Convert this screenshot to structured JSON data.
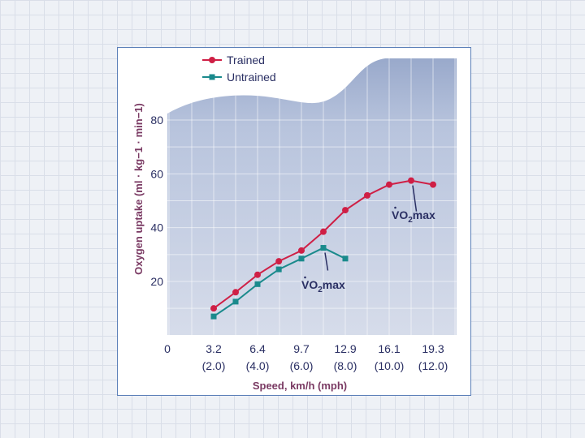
{
  "chart_data": {
    "type": "line",
    "title": "",
    "xlabel": "Speed, km/h (mph)",
    "ylabel": "Oxygen uptake (ml · kg−1 · min−1)",
    "ylim": [
      0,
      85
    ],
    "y_ticks": [
      20,
      40,
      60,
      80
    ],
    "x_ticks": [
      {
        "value": 0,
        "label": "0",
        "sublabel": ""
      },
      {
        "value": 3.2,
        "label": "3.2",
        "sublabel": "(2.0)"
      },
      {
        "value": 6.4,
        "label": "6.4",
        "sublabel": "(4.0)"
      },
      {
        "value": 9.7,
        "label": "9.7",
        "sublabel": "(6.0)"
      },
      {
        "value": 12.9,
        "label": "12.9",
        "sublabel": "(8.0)"
      },
      {
        "value": 16.1,
        "label": "16.1",
        "sublabel": "(10.0)"
      },
      {
        "value": 19.3,
        "label": "19.3",
        "sublabel": "(12.0)"
      }
    ],
    "legend_position": "top-left",
    "series": [
      {
        "name": "Trained",
        "color": "#cf1f45",
        "marker": "circle",
        "x": [
          3.2,
          4.8,
          6.4,
          8.0,
          9.7,
          11.3,
          12.9,
          14.5,
          16.1,
          17.7,
          19.3
        ],
        "y": [
          10,
          16,
          22.5,
          27.5,
          31.5,
          38.5,
          46.5,
          52,
          56,
          57.5,
          56
        ]
      },
      {
        "name": "Untrained",
        "color": "#1a8a8c",
        "marker": "square",
        "x": [
          3.2,
          4.8,
          6.4,
          8.0,
          9.7,
          11.3,
          12.9
        ],
        "y": [
          7,
          12.5,
          19,
          24.5,
          28.5,
          32.5,
          28.5
        ]
      }
    ],
    "annotations": [
      {
        "series": "Trained",
        "point_index": 9,
        "text": "VO2max"
      },
      {
        "series": "Untrained",
        "point_index": 5,
        "text": "VO2max"
      }
    ]
  }
}
